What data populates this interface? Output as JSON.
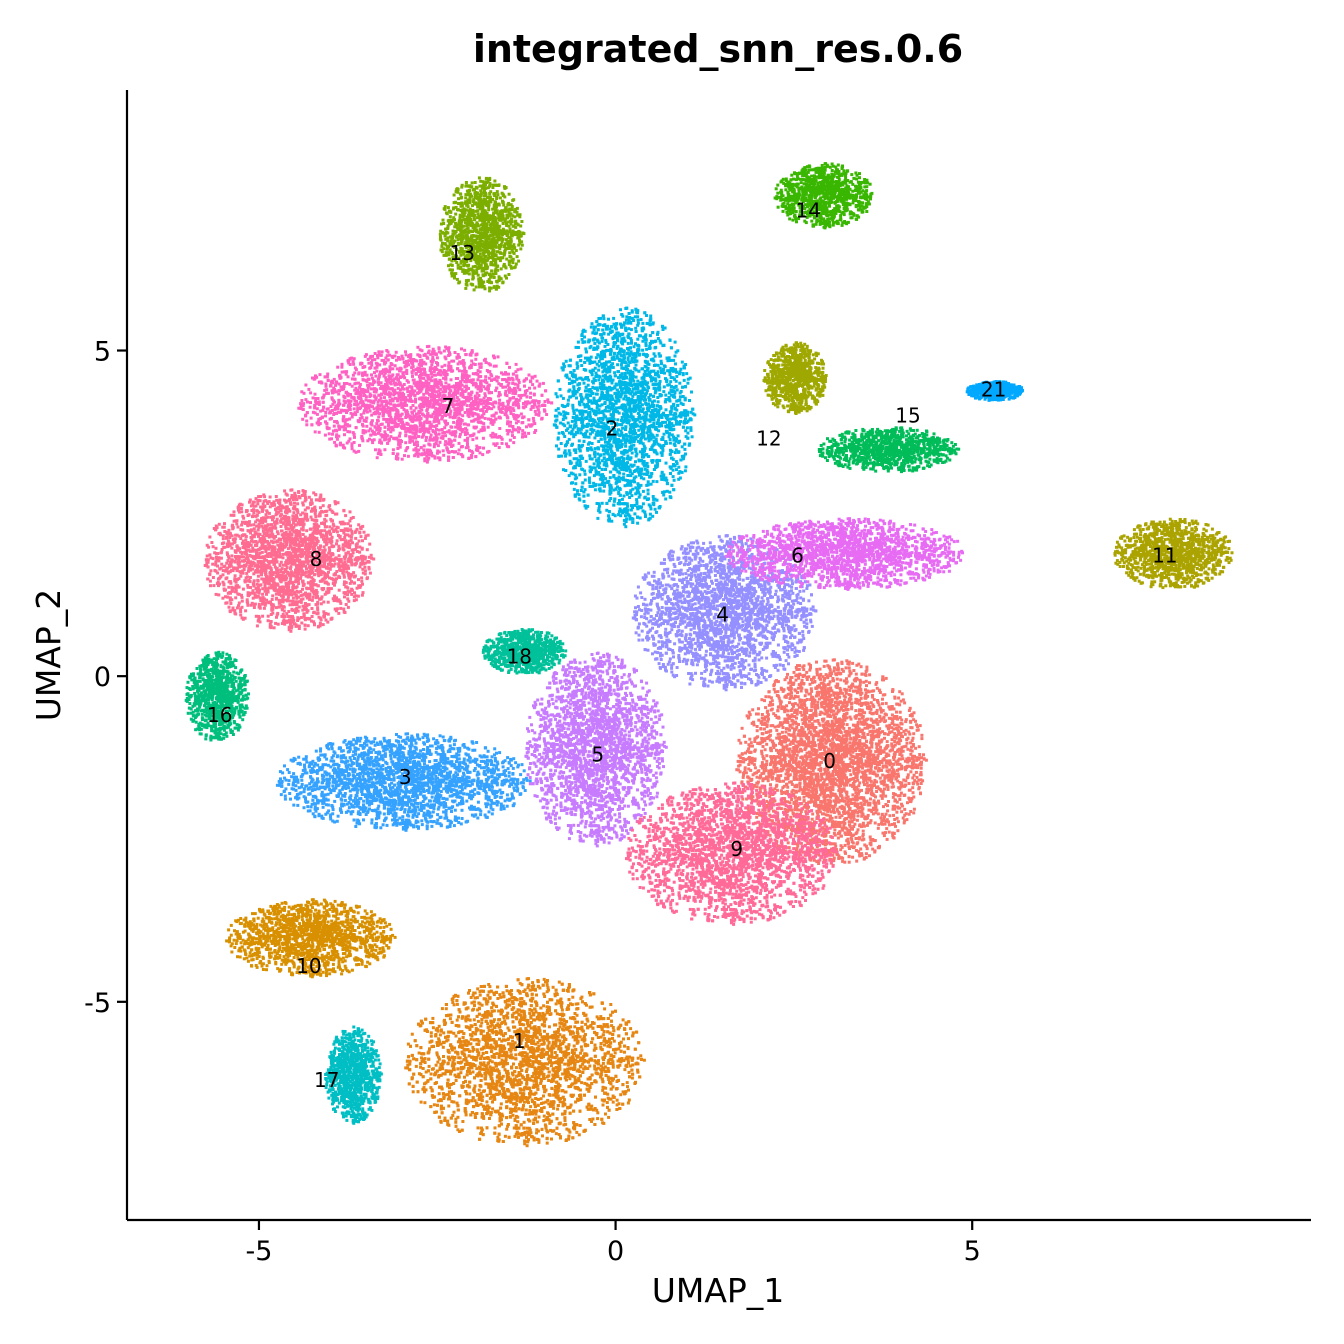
{
  "chart_data": {
    "type": "scatter",
    "title": "integrated_snn_res.0.6",
    "xlabel": "UMAP_1",
    "ylabel": "UMAP_2",
    "xlim": [
      -6.85,
      9.75
    ],
    "ylim": [
      -8.35,
      9.0
    ],
    "x_ticks": [
      -5,
      0,
      5
    ],
    "x_tick_labels": [
      "-5",
      "0",
      "5"
    ],
    "y_ticks": [
      -5,
      0,
      5
    ],
    "y_tick_labels": [
      "-5",
      "0",
      "5"
    ],
    "grid": false,
    "legend": "none",
    "clusters": [
      {
        "label": "0",
        "center": [
          3.0,
          -1.3
        ],
        "spread": [
          1.35,
          1.6
        ],
        "color": "#F8766D"
      },
      {
        "label": "1",
        "center": [
          -1.3,
          -5.9
        ],
        "spread": [
          1.7,
          1.3
        ],
        "color": "#E68613"
      },
      {
        "label": "2",
        "center": [
          0.1,
          4.0
        ],
        "spread": [
          1.0,
          1.7
        ],
        "color": "#00B8E7"
      },
      {
        "label": "3",
        "center": [
          -3.0,
          -1.6
        ],
        "spread": [
          1.8,
          0.75
        ],
        "color": "#35A2FF"
      },
      {
        "label": "4",
        "center": [
          1.5,
          1.0
        ],
        "spread": [
          1.3,
          1.2
        ],
        "color": "#9590FF"
      },
      {
        "label": "5",
        "center": [
          -0.3,
          -1.1
        ],
        "spread": [
          1.0,
          1.5
        ],
        "color": "#C77CFF"
      },
      {
        "label": "6",
        "center": [
          3.2,
          1.9
        ],
        "spread": [
          1.7,
          0.55
        ],
        "color": "#E76BF3"
      },
      {
        "label": "7",
        "center": [
          -2.7,
          4.2
        ],
        "spread": [
          1.8,
          0.9
        ],
        "color": "#FF61C3"
      },
      {
        "label": "8",
        "center": [
          -4.6,
          1.8
        ],
        "spread": [
          1.2,
          1.1
        ],
        "color": "#FF6C91"
      },
      {
        "label": "9",
        "center": [
          1.6,
          -2.7
        ],
        "spread": [
          1.5,
          1.1
        ],
        "color": "#FF6A98"
      },
      {
        "label": "10",
        "center": [
          -4.3,
          -4.0
        ],
        "spread": [
          1.2,
          0.6
        ],
        "color": "#D89000"
      },
      {
        "label": "11",
        "center": [
          7.8,
          1.9
        ],
        "spread": [
          0.85,
          0.55
        ],
        "color": "#ABA300"
      },
      {
        "label": "12",
        "center": [
          2.5,
          4.6
        ],
        "spread": [
          0.45,
          0.55
        ],
        "color": "#9FA800"
      },
      {
        "label": "13",
        "center": [
          -1.9,
          6.8
        ],
        "spread": [
          0.6,
          0.9
        ],
        "color": "#7CAE00"
      },
      {
        "label": "14",
        "center": [
          2.9,
          7.4
        ],
        "spread": [
          0.7,
          0.5
        ],
        "color": "#39B600"
      },
      {
        "label": "15",
        "center": [
          3.8,
          3.5
        ],
        "spread": [
          1.0,
          0.35
        ],
        "color": "#00BC59"
      },
      {
        "label": "16",
        "center": [
          -5.6,
          -0.3
        ],
        "spread": [
          0.45,
          0.7
        ],
        "color": "#00BF7D"
      },
      {
        "label": "17",
        "center": [
          -3.7,
          -6.1
        ],
        "spread": [
          0.4,
          0.75
        ],
        "color": "#00BFC4"
      },
      {
        "label": "18",
        "center": [
          -1.3,
          0.4
        ],
        "spread": [
          0.6,
          0.35
        ],
        "color": "#00C19A"
      },
      {
        "label": "21",
        "center": [
          5.3,
          4.4
        ],
        "spread": [
          0.4,
          0.15
        ],
        "color": "#00A9FF"
      }
    ],
    "cluster_labels": [
      {
        "text": "0",
        "x": 3.0,
        "y": -1.3
      },
      {
        "text": "1",
        "x": -1.35,
        "y": -5.6
      },
      {
        "text": "2",
        "x": -0.05,
        "y": 3.8
      },
      {
        "text": "3",
        "x": -2.95,
        "y": -1.55
      },
      {
        "text": "4",
        "x": 1.5,
        "y": 0.95
      },
      {
        "text": "5",
        "x": -0.25,
        "y": -1.2
      },
      {
        "text": "6",
        "x": 2.55,
        "y": 1.85
      },
      {
        "text": "7",
        "x": -2.35,
        "y": 4.15
      },
      {
        "text": "8",
        "x": -4.2,
        "y": 1.8
      },
      {
        "text": "9",
        "x": 1.7,
        "y": -2.65
      },
      {
        "text": "10",
        "x": -4.3,
        "y": -4.45
      },
      {
        "text": "11",
        "x": 7.7,
        "y": 1.85
      },
      {
        "text": "12",
        "x": 2.15,
        "y": 3.65
      },
      {
        "text": "13",
        "x": -2.15,
        "y": 6.5
      },
      {
        "text": "14",
        "x": 2.7,
        "y": 7.15
      },
      {
        "text": "15",
        "x": 4.1,
        "y": 4.0
      },
      {
        "text": "16",
        "x": -5.55,
        "y": -0.6
      },
      {
        "text": "17",
        "x": -4.05,
        "y": -6.2
      },
      {
        "text": "18",
        "x": -1.35,
        "y": 0.3
      },
      {
        "text": "21",
        "x": 5.3,
        "y": 4.4
      }
    ]
  }
}
